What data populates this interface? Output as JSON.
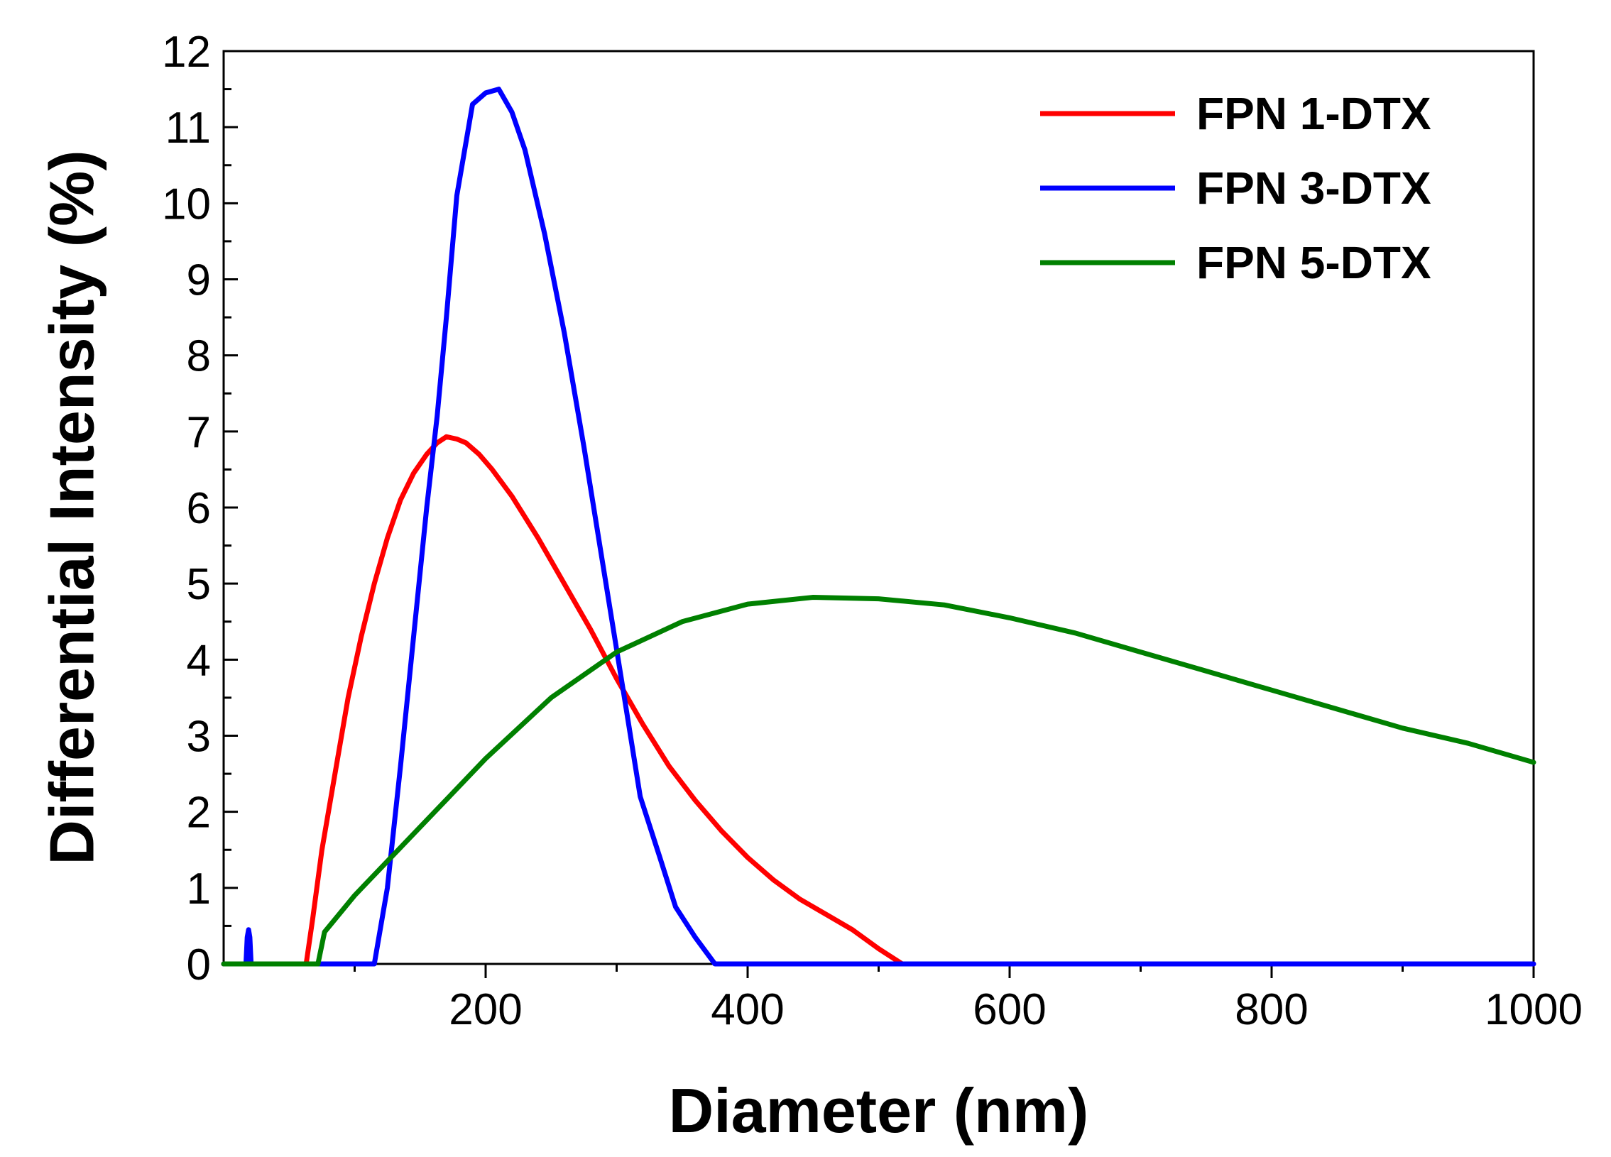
{
  "chart_data": {
    "type": "line",
    "title": "",
    "xlabel": "Diameter (nm)",
    "ylabel": "Differential Intensity (%)",
    "xlim": [
      0,
      1000
    ],
    "ylim": [
      0,
      12
    ],
    "xticks": [
      200,
      400,
      600,
      800,
      1000
    ],
    "yticks": [
      0,
      1,
      2,
      3,
      4,
      5,
      6,
      7,
      8,
      9,
      10,
      11,
      12
    ],
    "grid": false,
    "legend_position": "top-right",
    "series": [
      {
        "name": "FPN 1-DTX",
        "color": "#ff0000",
        "points": [
          [
            0,
            0
          ],
          [
            63,
            0
          ],
          [
            68,
            0.6
          ],
          [
            75,
            1.5
          ],
          [
            85,
            2.5
          ],
          [
            95,
            3.5
          ],
          [
            105,
            4.3
          ],
          [
            115,
            5.0
          ],
          [
            125,
            5.6
          ],
          [
            135,
            6.1
          ],
          [
            145,
            6.45
          ],
          [
            155,
            6.7
          ],
          [
            163,
            6.85
          ],
          [
            170,
            6.93
          ],
          [
            178,
            6.9
          ],
          [
            185,
            6.85
          ],
          [
            195,
            6.7
          ],
          [
            205,
            6.5
          ],
          [
            220,
            6.15
          ],
          [
            240,
            5.6
          ],
          [
            260,
            5.0
          ],
          [
            280,
            4.4
          ],
          [
            300,
            3.75
          ],
          [
            320,
            3.15
          ],
          [
            340,
            2.6
          ],
          [
            360,
            2.15
          ],
          [
            380,
            1.75
          ],
          [
            400,
            1.4
          ],
          [
            420,
            1.1
          ],
          [
            440,
            0.85
          ],
          [
            460,
            0.65
          ],
          [
            480,
            0.45
          ],
          [
            500,
            0.2
          ],
          [
            518,
            0
          ],
          [
            1000,
            0
          ]
        ]
      },
      {
        "name": "FPN 3-DTX",
        "color": "#0000ff",
        "points": [
          [
            0,
            0
          ],
          [
            17,
            0
          ],
          [
            18,
            0.35
          ],
          [
            19,
            0.45
          ],
          [
            20,
            0.35
          ],
          [
            21,
            0
          ],
          [
            115,
            0
          ],
          [
            125,
            1.0
          ],
          [
            135,
            2.6
          ],
          [
            145,
            4.3
          ],
          [
            155,
            6.0
          ],
          [
            163,
            7.2
          ],
          [
            170,
            8.5
          ],
          [
            178,
            10.1
          ],
          [
            190,
            11.3
          ],
          [
            200,
            11.45
          ],
          [
            210,
            11.5
          ],
          [
            220,
            11.2
          ],
          [
            230,
            10.7
          ],
          [
            245,
            9.6
          ],
          [
            260,
            8.3
          ],
          [
            275,
            6.8
          ],
          [
            290,
            5.2
          ],
          [
            305,
            3.6
          ],
          [
            318,
            2.2
          ],
          [
            333,
            1.4
          ],
          [
            345,
            0.75
          ],
          [
            360,
            0.35
          ],
          [
            375,
            0
          ],
          [
            1000,
            0
          ]
        ]
      },
      {
        "name": "FPN 5-DTX",
        "color": "#008000",
        "points": [
          [
            0,
            0
          ],
          [
            72,
            0
          ],
          [
            77,
            0.42
          ],
          [
            100,
            0.9
          ],
          [
            150,
            1.8
          ],
          [
            200,
            2.7
          ],
          [
            250,
            3.5
          ],
          [
            300,
            4.1
          ],
          [
            350,
            4.5
          ],
          [
            400,
            4.73
          ],
          [
            450,
            4.82
          ],
          [
            500,
            4.8
          ],
          [
            550,
            4.72
          ],
          [
            600,
            4.55
          ],
          [
            650,
            4.35
          ],
          [
            700,
            4.1
          ],
          [
            750,
            3.85
          ],
          [
            800,
            3.6
          ],
          [
            850,
            3.35
          ],
          [
            900,
            3.1
          ],
          [
            950,
            2.9
          ],
          [
            1000,
            2.65
          ]
        ]
      }
    ]
  }
}
